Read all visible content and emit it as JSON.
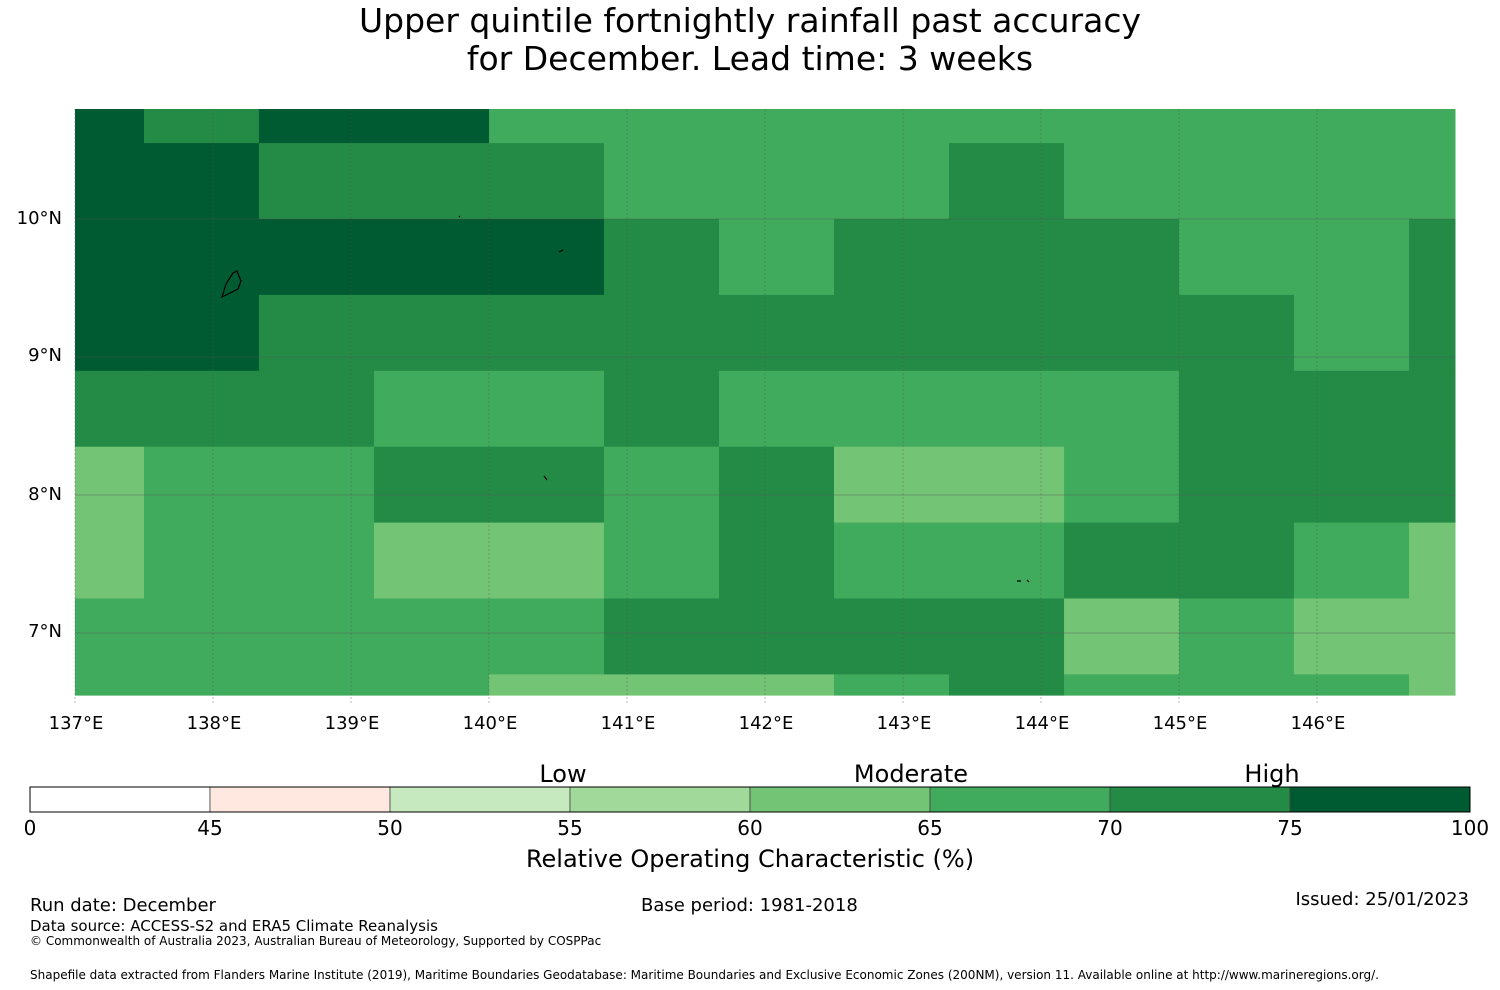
{
  "title": {
    "line1": "Upper quintile fortnightly rainfall past accuracy",
    "line2": "for December. Lead time: 3 weeks"
  },
  "colors": {
    "c0": "#ffffff",
    "c45": "#fee8e0",
    "c50": "#c7e9c0",
    "c55": "#a1d99b",
    "c60": "#74c476",
    "c65": "#41ab5d",
    "c70": "#238b45",
    "c75": "#005a32",
    "grid": "#555555",
    "land": "#000000"
  },
  "map": {
    "lon_range": [
      137.0,
      147.0
    ],
    "lat_range": [
      6.5,
      10.8
    ],
    "lon_ticks": [
      "137°E",
      "138°E",
      "139°E",
      "140°E",
      "141°E",
      "142°E",
      "143°E",
      "144°E",
      "145°E",
      "146°E"
    ],
    "lat_ticks": [
      "10°N",
      "9°N",
      "8°N",
      "7°N"
    ],
    "lon_values": [
      137,
      138,
      139,
      140,
      141,
      142,
      143,
      144,
      145,
      146
    ],
    "lat_values": [
      10,
      9,
      8,
      7
    ],
    "grid_lon_edges": [
      137.0,
      137.5,
      138.333,
      139.167,
      140.0,
      140.833,
      141.667,
      142.5,
      143.333,
      144.167,
      145.0,
      145.833,
      146.667,
      147.0
    ],
    "grid_lat_edges": [
      10.8,
      10.55,
      10.0,
      9.45,
      8.9,
      8.35,
      7.8,
      7.25,
      6.7,
      6.55
    ],
    "cells": [
      [
        "c75",
        "c70",
        "c75",
        "c75",
        "c65",
        "c65",
        "c65",
        "c65",
        "c65",
        "c65",
        "c65",
        "c65",
        "c65"
      ],
      [
        "c75",
        "c75",
        "c70",
        "c70",
        "c70",
        "c65",
        "c65",
        "c65",
        "c70",
        "c65",
        "c65",
        "c65",
        "c65"
      ],
      [
        "c75",
        "c75",
        "c75",
        "c75",
        "c75",
        "c70",
        "c65",
        "c70",
        "c70",
        "c70",
        "c65",
        "c65",
        "c70"
      ],
      [
        "c75",
        "c75",
        "c70",
        "c70",
        "c70",
        "c70",
        "c70",
        "c70",
        "c70",
        "c70",
        "c70",
        "c65",
        "c70"
      ],
      [
        "c70",
        "c70",
        "c70",
        "c65",
        "c65",
        "c70",
        "c65",
        "c65",
        "c65",
        "c65",
        "c70",
        "c70",
        "c70"
      ],
      [
        "c60",
        "c65",
        "c65",
        "c70",
        "c70",
        "c65",
        "c70",
        "c60",
        "c60",
        "c65",
        "c70",
        "c70",
        "c70"
      ],
      [
        "c60",
        "c65",
        "c65",
        "c60",
        "c60",
        "c65",
        "c70",
        "c65",
        "c65",
        "c70",
        "c70",
        "c65",
        "c60"
      ],
      [
        "c65",
        "c65",
        "c65",
        "c65",
        "c65",
        "c70",
        "c70",
        "c70",
        "c70",
        "c60",
        "c65",
        "c60",
        "c60"
      ],
      [
        "c65",
        "c65",
        "c65",
        "c65",
        "c60",
        "c60",
        "c60",
        "c65",
        "c70",
        "c65",
        "c65",
        "c65",
        "c60"
      ]
    ]
  },
  "colorbar": {
    "categories": [
      "Low",
      "Moderate",
      "High"
    ],
    "ticks": [
      "0",
      "45",
      "50",
      "55",
      "60",
      "65",
      "70",
      "75",
      "100"
    ],
    "colors": [
      "c0",
      "c45",
      "c50",
      "c55",
      "c60",
      "c65",
      "c70",
      "c75"
    ],
    "label": "Relative Operating Characteristic (%)"
  },
  "footer": {
    "run_date": "Run date: December",
    "base_period": "Base period: 1981-2018",
    "issued": "Issued: 25/01/2023",
    "data_source": "Data source: ACCESS-S2 and ERA5 Climate Reanalysis",
    "copyright": "© Commonwealth of Australia 2023, Australian Bureau of Meteorology, Supported by COSPPac",
    "shapefile": "Shapefile data extracted from Flanders Marine Institute (2019), Maritime Boundaries Geodatabase: Maritime Boundaries and Exclusive Economic Zones (200NM), version 11. Available online at http://www.marineregions.org/."
  }
}
